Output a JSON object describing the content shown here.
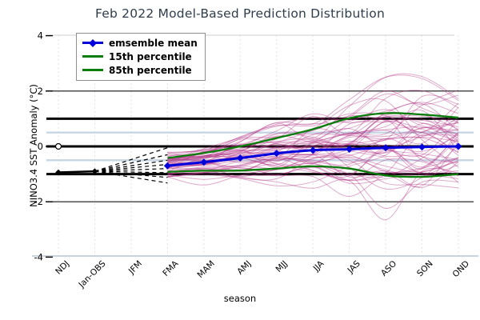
{
  "title": "Feb 2022 Model-Based Prediction Distribution",
  "legend": {
    "items": [
      {
        "label": "emsemble mean",
        "color": "#0000dd",
        "marker": "diamond-line"
      },
      {
        "label": "15th percentile",
        "color": "#0a7d0a",
        "marker": "line"
      },
      {
        "label": "85th percentile",
        "color": "#0a7d0a",
        "marker": "line"
      }
    ]
  },
  "chart_data": {
    "type": "line",
    "title": "Feb 2022 Model-Based Prediction Distribution",
    "xlabel": "season",
    "ylabel": "NINO3.4 SST Anomaly (°C)",
    "ylim": [
      -4,
      4
    ],
    "yticks": [
      4,
      2,
      0,
      -2,
      -4
    ],
    "categories": [
      "NDJ",
      "Jan-OBS",
      "JFM",
      "FMA",
      "MAM",
      "AMJ",
      "MJJ",
      "JJA",
      "JAS",
      "ASO",
      "SON",
      "OND"
    ],
    "forecast_start_index": 3,
    "observed": {
      "categories": [
        "NDJ",
        "Jan-OBS"
      ],
      "values": [
        -0.94,
        -0.9
      ],
      "color": "#000000"
    },
    "zero_marker": {
      "category": "NDJ",
      "value": 0
    },
    "series": [
      {
        "name": "emsemble mean",
        "color": "#0000dd",
        "values": [
          -0.7,
          -0.57,
          -0.42,
          -0.25,
          -0.14,
          -0.1,
          -0.05,
          -0.02,
          0.0
        ]
      },
      {
        "name": "15th percentile",
        "color": "#0a7d0a",
        "values": [
          -0.92,
          -0.88,
          -0.87,
          -0.8,
          -0.72,
          -0.8,
          -1.05,
          -1.1,
          -1.0
        ]
      },
      {
        "name": "85th percentile",
        "color": "#0a7d0a",
        "values": [
          -0.42,
          -0.24,
          0.0,
          0.3,
          0.62,
          1.02,
          1.2,
          1.15,
          1.04
        ]
      }
    ],
    "ensemble": {
      "count": 56,
      "color": "#b03585",
      "opacity": 0.42,
      "envelope_min": [
        -1.35,
        -1.65,
        -1.85,
        -2.05,
        -2.25,
        -2.45,
        -2.65,
        -3.0,
        -2.55
      ],
      "envelope_max": [
        -0.08,
        0.35,
        0.85,
        1.35,
        1.85,
        2.15,
        2.5,
        2.6,
        2.85
      ]
    },
    "dashed_fan_targets": [
      -0.05,
      -0.3,
      -0.5,
      -0.65,
      -0.8,
      -0.95,
      -1.12,
      -1.32
    ],
    "reference_lines": {
      "heavy_black": [
        1,
        0,
        -1
      ],
      "thin_black": [
        2,
        -2
      ],
      "light_blue": [
        0.5,
        -0.5
      ],
      "light_blue_color": "#c6d6e4"
    },
    "grid": "vertical-dashed"
  }
}
